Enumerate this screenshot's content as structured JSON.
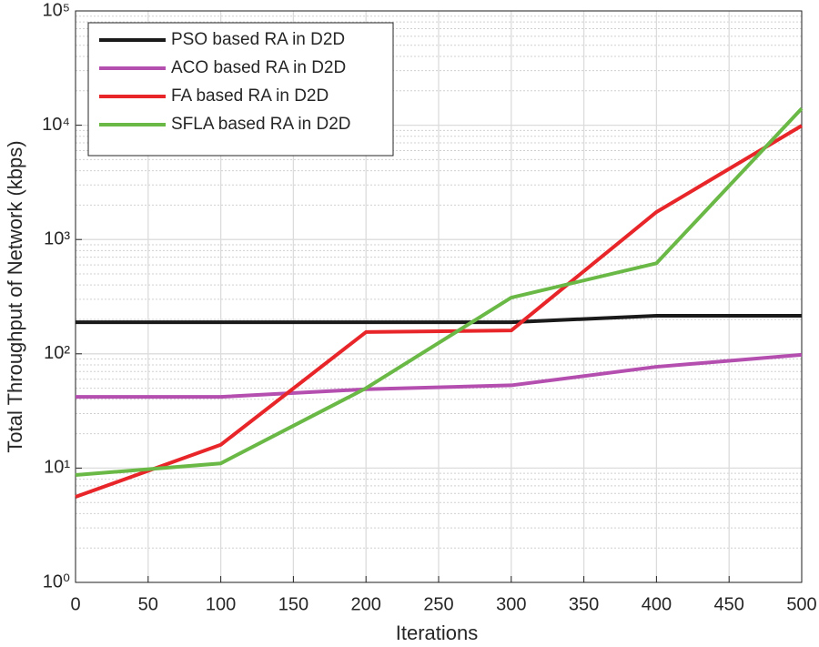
{
  "chart_data": {
    "type": "line",
    "x_label": "Iterations",
    "y_label": "Total Throughput of Network (kbps)",
    "x": [
      0,
      100,
      200,
      300,
      400,
      500
    ],
    "series": [
      {
        "name": "PSO based RA in D2D",
        "color": "#1a1a1a",
        "values": [
          189,
          189,
          189,
          189,
          215,
          215
        ]
      },
      {
        "name": "ACO based RA in D2D",
        "color": "#b44fb0",
        "values": [
          42,
          42,
          49,
          53,
          77,
          98
        ]
      },
      {
        "name": "FA based RA in D2D",
        "color": "#e8262a",
        "values": [
          5.6,
          16,
          155,
          160,
          1740,
          9900
        ]
      },
      {
        "name": "SFLA based RA in D2D",
        "color": "#6ab946",
        "values": [
          8.7,
          11,
          50,
          310,
          620,
          14000
        ]
      }
    ],
    "xlim": [
      0,
      500
    ],
    "xticks": [
      0,
      50,
      100,
      150,
      200,
      250,
      300,
      350,
      400,
      450,
      500
    ],
    "ylim": [
      1,
      100000
    ],
    "yticks": [
      {
        "value": 1,
        "label": "10⁰"
      },
      {
        "value": 10,
        "label": "10¹"
      },
      {
        "value": 100,
        "label": "10²"
      },
      {
        "value": 1000,
        "label": "10³"
      },
      {
        "value": 10000,
        "label": "10⁴"
      },
      {
        "value": 100000,
        "label": "10⁵"
      }
    ],
    "y_scale": "log",
    "grid": true,
    "minor_grid": true,
    "legend_position": "upper-left"
  }
}
